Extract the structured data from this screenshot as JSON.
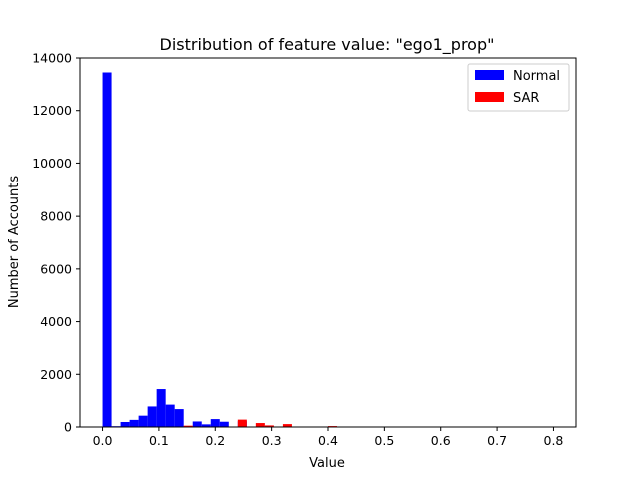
{
  "chart_data": {
    "type": "bar",
    "title": "Distribution of feature value: \"ego1_prop\"",
    "xlabel": "Value",
    "ylabel": "Number of Accounts",
    "xlim": [
      -0.04,
      0.84
    ],
    "ylim": [
      0,
      14000
    ],
    "xticks": [
      0.0,
      0.1,
      0.2,
      0.3,
      0.4,
      0.5,
      0.6,
      0.7,
      0.8
    ],
    "xtick_labels": [
      "0.0",
      "0.1",
      "0.2",
      "0.3",
      "0.4",
      "0.5",
      "0.6",
      "0.7",
      "0.8"
    ],
    "yticks": [
      0,
      2000,
      4000,
      6000,
      8000,
      10000,
      12000,
      14000
    ],
    "ytick_labels": [
      "0",
      "2000",
      "4000",
      "6000",
      "8000",
      "10000",
      "12000",
      "14000"
    ],
    "grid": false,
    "legend_position": "top-right",
    "bin_width": 0.016,
    "series": [
      {
        "name": "Normal",
        "color": "#0000ff",
        "bin_starts": [
          0.0,
          0.016,
          0.032,
          0.048,
          0.064,
          0.08,
          0.096,
          0.112,
          0.128,
          0.144,
          0.16,
          0.176,
          0.192,
          0.208,
          0.24
        ],
        "values": [
          13450,
          30,
          190,
          270,
          430,
          780,
          1440,
          850,
          680,
          30,
          210,
          100,
          300,
          200,
          220
        ]
      },
      {
        "name": "SAR",
        "color": "#ff0000",
        "bin_starts": [
          0.144,
          0.24,
          0.272,
          0.288,
          0.32,
          0.4
        ],
        "values": [
          50,
          280,
          150,
          60,
          110,
          35
        ]
      }
    ]
  }
}
